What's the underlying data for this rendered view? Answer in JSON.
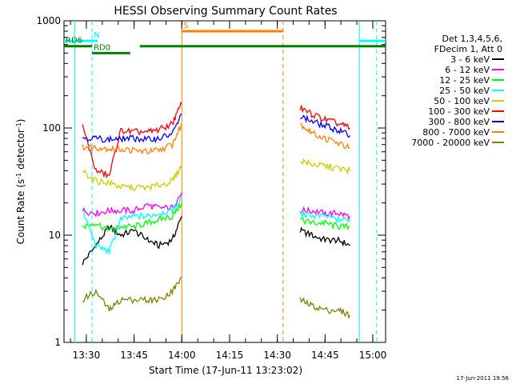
{
  "chart_data": {
    "type": "line",
    "title": "HESSI Observing Summary Count Rates",
    "xlabel": "Start Time (17-Jun-11 13:23:02)",
    "ylabel_main": "Count Rate (s",
    "ylabel_sup1": "-1",
    "ylabel_mid": " detector",
    "ylabel_sup2": "-1",
    "ylabel_end": ")",
    "yscale": "log",
    "ylim": [
      1,
      1000
    ],
    "xlim_minutes": [
      13.383,
      15.067
    ],
    "x_ticks": [
      {
        "m": 13.5,
        "label": "13:30"
      },
      {
        "m": 13.75,
        "label": "13:45"
      },
      {
        "m": 14.0,
        "label": "14:00"
      },
      {
        "m": 14.25,
        "label": "14:15"
      },
      {
        "m": 14.5,
        "label": "14:30"
      },
      {
        "m": 14.75,
        "label": "14:45"
      },
      {
        "m": 15.0,
        "label": "15:00"
      }
    ],
    "y_ticks": [
      {
        "v": 1,
        "label": "1"
      },
      {
        "v": 10,
        "label": "10"
      },
      {
        "v": 100,
        "label": "100"
      },
      {
        "v": 1000,
        "label": "1000"
      }
    ],
    "legend": {
      "header": [
        "Det 1,3,4,5,6,",
        "FDecim 1, Att 0"
      ],
      "placement": "right"
    },
    "series": [
      {
        "name": "3 - 6 keV",
        "color": "#000000",
        "seg1": [
          [
            13.48,
            5.5
          ],
          [
            13.55,
            8
          ],
          [
            13.62,
            12
          ],
          [
            13.68,
            10
          ],
          [
            13.75,
            11
          ],
          [
            13.82,
            9
          ],
          [
            13.88,
            8
          ],
          [
            13.95,
            9
          ],
          [
            14.0,
            15
          ]
        ],
        "seg2": [
          [
            14.62,
            11
          ],
          [
            14.68,
            10
          ],
          [
            14.75,
            9
          ],
          [
            14.82,
            9
          ],
          [
            14.88,
            8
          ]
        ]
      },
      {
        "name": "6 - 12 keV",
        "color": "#ff00ff",
        "seg1": [
          [
            13.48,
            17
          ],
          [
            13.55,
            16
          ],
          [
            13.62,
            17
          ],
          [
            13.68,
            17
          ],
          [
            13.75,
            17
          ],
          [
            13.82,
            19
          ],
          [
            13.88,
            18
          ],
          [
            13.95,
            18
          ],
          [
            14.0,
            25
          ]
        ],
        "seg2": [
          [
            14.62,
            17
          ],
          [
            14.68,
            17
          ],
          [
            14.75,
            16
          ],
          [
            14.82,
            16
          ],
          [
            14.88,
            15
          ]
        ]
      },
      {
        "name": "12 - 25 keV",
        "color": "#00ff00",
        "seg1": [
          [
            13.48,
            12
          ],
          [
            13.55,
            13
          ],
          [
            13.62,
            11
          ],
          [
            13.68,
            12
          ],
          [
            13.75,
            12
          ],
          [
            13.82,
            13
          ],
          [
            13.88,
            14
          ],
          [
            13.95,
            15
          ],
          [
            14.0,
            20
          ]
        ],
        "seg2": [
          [
            14.62,
            14
          ],
          [
            14.68,
            13
          ],
          [
            14.75,
            13
          ],
          [
            14.82,
            12
          ],
          [
            14.88,
            12
          ]
        ]
      },
      {
        "name": "25 - 50 keV",
        "color": "#00ffff",
        "seg1": [
          [
            13.48,
            17
          ],
          [
            13.55,
            8
          ],
          [
            13.62,
            7
          ],
          [
            13.68,
            14
          ],
          [
            13.75,
            15
          ],
          [
            13.82,
            15
          ],
          [
            13.88,
            16
          ],
          [
            13.95,
            17
          ],
          [
            14.0,
            22
          ]
        ],
        "seg2": [
          [
            14.62,
            16
          ],
          [
            14.68,
            15
          ],
          [
            14.75,
            15
          ],
          [
            14.82,
            14
          ],
          [
            14.88,
            14
          ]
        ]
      },
      {
        "name": "50 - 100 keV",
        "color": "#cccc00",
        "seg1": [
          [
            13.48,
            40
          ],
          [
            13.55,
            32
          ],
          [
            13.62,
            31
          ],
          [
            13.68,
            28
          ],
          [
            13.75,
            28
          ],
          [
            13.82,
            28
          ],
          [
            13.88,
            29
          ],
          [
            13.95,
            32
          ],
          [
            14.0,
            45
          ]
        ],
        "seg2": [
          [
            14.62,
            50
          ],
          [
            14.68,
            46
          ],
          [
            14.75,
            44
          ],
          [
            14.82,
            42
          ],
          [
            14.88,
            40
          ]
        ]
      },
      {
        "name": "100 - 300 keV",
        "color": "#ff0000",
        "seg1": [
          [
            13.48,
            105
          ],
          [
            13.55,
            40
          ],
          [
            13.62,
            36
          ],
          [
            13.68,
            95
          ],
          [
            13.75,
            92
          ],
          [
            13.82,
            92
          ],
          [
            13.88,
            96
          ],
          [
            13.95,
            110
          ],
          [
            14.0,
            170
          ]
        ],
        "seg2": [
          [
            14.62,
            155
          ],
          [
            14.68,
            135
          ],
          [
            14.75,
            120
          ],
          [
            14.82,
            110
          ],
          [
            14.88,
            100
          ]
        ]
      },
      {
        "name": "300 - 800 keV",
        "color": "#0000ff",
        "seg1": [
          [
            13.48,
            82
          ],
          [
            13.55,
            80
          ],
          [
            13.62,
            78
          ],
          [
            13.68,
            80
          ],
          [
            13.75,
            80
          ],
          [
            13.82,
            78
          ],
          [
            13.88,
            80
          ],
          [
            13.95,
            88
          ],
          [
            14.0,
            135
          ]
        ],
        "seg2": [
          [
            14.62,
            130
          ],
          [
            14.68,
            115
          ],
          [
            14.75,
            105
          ],
          [
            14.82,
            95
          ],
          [
            14.88,
            85
          ]
        ]
      },
      {
        "name": "800 - 7000 keV",
        "color": "#ff8000",
        "seg1": [
          [
            13.48,
            67
          ],
          [
            13.55,
            66
          ],
          [
            13.62,
            64
          ],
          [
            13.68,
            63
          ],
          [
            13.75,
            62
          ],
          [
            13.82,
            60
          ],
          [
            13.88,
            62
          ],
          [
            13.95,
            70
          ],
          [
            14.0,
            110
          ]
        ],
        "seg2": [
          [
            14.62,
            110
          ],
          [
            14.68,
            90
          ],
          [
            14.75,
            80
          ],
          [
            14.82,
            72
          ],
          [
            14.88,
            65
          ]
        ]
      },
      {
        "name": "7000 - 20000 keV",
        "color": "#808000",
        "seg1": [
          [
            13.48,
            2.5
          ],
          [
            13.55,
            3
          ],
          [
            13.62,
            2
          ],
          [
            13.68,
            2.5
          ],
          [
            13.75,
            2.5
          ],
          [
            13.82,
            2.5
          ],
          [
            13.88,
            2.5
          ],
          [
            13.95,
            3
          ],
          [
            14.0,
            4
          ]
        ],
        "seg2": [
          [
            14.62,
            2.5
          ],
          [
            14.68,
            2.2
          ],
          [
            14.75,
            2.0
          ],
          [
            14.82,
            2.0
          ],
          [
            14.88,
            1.8
          ]
        ]
      }
    ],
    "attenuator_bars": [
      {
        "label": "",
        "color": "#00ffff",
        "level": 650,
        "segments": [
          [
            13.383,
            13.53
          ],
          [
            14.93,
            15.067
          ]
        ]
      },
      {
        "label": "N",
        "color": "#00ffff",
        "level": 650,
        "segments": [
          [
            13.53,
            13.56
          ]
        ]
      },
      {
        "label": "RD0",
        "color": "#008000",
        "level": 500,
        "segments": [
          [
            13.53,
            13.73
          ]
        ]
      },
      {
        "label": "RD6",
        "color": "#008000",
        "level": 580,
        "segments": [
          [
            13.383,
            13.53
          ],
          [
            13.78,
            15.067
          ]
        ]
      },
      {
        "label": "S",
        "color": "#ff8000",
        "level": 800,
        "segments": [
          [
            14.0,
            14.53
          ]
        ]
      }
    ],
    "vlines": [
      {
        "m": 13.44,
        "color": "#00ffff",
        "dash": false
      },
      {
        "m": 13.53,
        "color": "#00ffff",
        "dash": true
      },
      {
        "m": 14.0,
        "color": "#ff8000",
        "dash": false
      },
      {
        "m": 14.53,
        "color": "#ff8000",
        "dash": true
      },
      {
        "m": 14.93,
        "color": "#00ffff",
        "dash": false
      },
      {
        "m": 15.02,
        "color": "#00ffff",
        "dash": true
      }
    ]
  },
  "footer": {
    "timestamp": "17-Jun-2011 19:56"
  }
}
